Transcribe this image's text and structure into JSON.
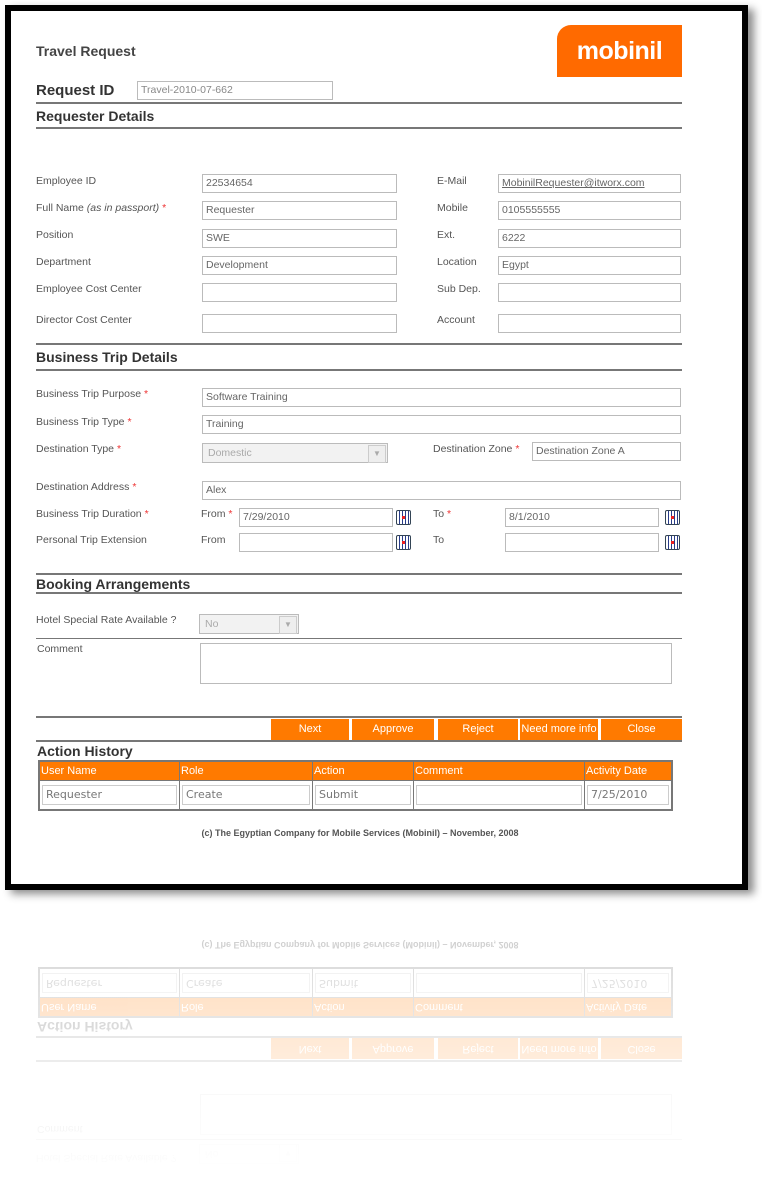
{
  "header": {
    "title": "Travel Request",
    "logo_text": "mobinil",
    "request_id_label": "Request ID",
    "request_id": "Travel-2010-07-662"
  },
  "requester": {
    "section_title": "Requester Details",
    "employee_id_label": "Employee ID",
    "employee_id": "22534654",
    "full_name_label": "Full Name",
    "full_name_hint": "(as in passport)",
    "full_name": "Requester",
    "position_label": "Position",
    "position": "SWE",
    "department_label": "Department",
    "department": "Development",
    "emp_cost_center_label": "Employee Cost Center",
    "emp_cost_center": "",
    "dir_cost_center_label": "Director Cost Center",
    "dir_cost_center": "",
    "email_label": "E-Mail",
    "email": "MobinilRequester@itworx.com",
    "mobile_label": "Mobile",
    "mobile": "0105555555",
    "ext_label": "Ext.",
    "ext": "6222",
    "location_label": "Location",
    "location": "Egypt",
    "subdep_label": "Sub Dep.",
    "subdep": "",
    "account_label": "Account",
    "account": ""
  },
  "trip": {
    "section_title": "Business Trip Details",
    "purpose_label": "Business Trip Purpose",
    "purpose": "Software Training",
    "type_label": "Business Trip Type",
    "type": "Training",
    "dest_type_label": "Destination Type",
    "dest_type": "Domestic",
    "dest_zone_label": "Destination Zone",
    "dest_zone": "Destination Zone A",
    "dest_address_label": "Destination Address",
    "dest_address": "Alex",
    "duration_label": "Business Trip Duration",
    "from_label": "From",
    "to_label": "To",
    "duration_from": "7/29/2010",
    "duration_to": "8/1/2010",
    "extension_label": "Personal Trip Extension",
    "ext_from": "",
    "ext_to": ""
  },
  "required_mark": "*",
  "booking": {
    "section_title": "Booking Arrangements",
    "hotel_label": "Hotel Special Rate Available ?",
    "hotel": "No",
    "comment_label": "Comment",
    "comment": ""
  },
  "actions": {
    "next": "Next",
    "approve": "Approve",
    "reject": "Reject",
    "more_info": "Need more info",
    "close": "Close"
  },
  "history": {
    "title": "Action History",
    "columns": [
      "User Name",
      "Role",
      "Action",
      "Comment",
      "Activity Date"
    ],
    "rows": [
      [
        "Requester",
        "Create",
        "Submit",
        "",
        "7/25/2010"
      ]
    ]
  },
  "footer": "(c) The Egyptian Company for Mobile Services (Mobinil) – November, 2008",
  "colors": {
    "accent": "#ff7a00",
    "logo": "#ff6a00"
  }
}
